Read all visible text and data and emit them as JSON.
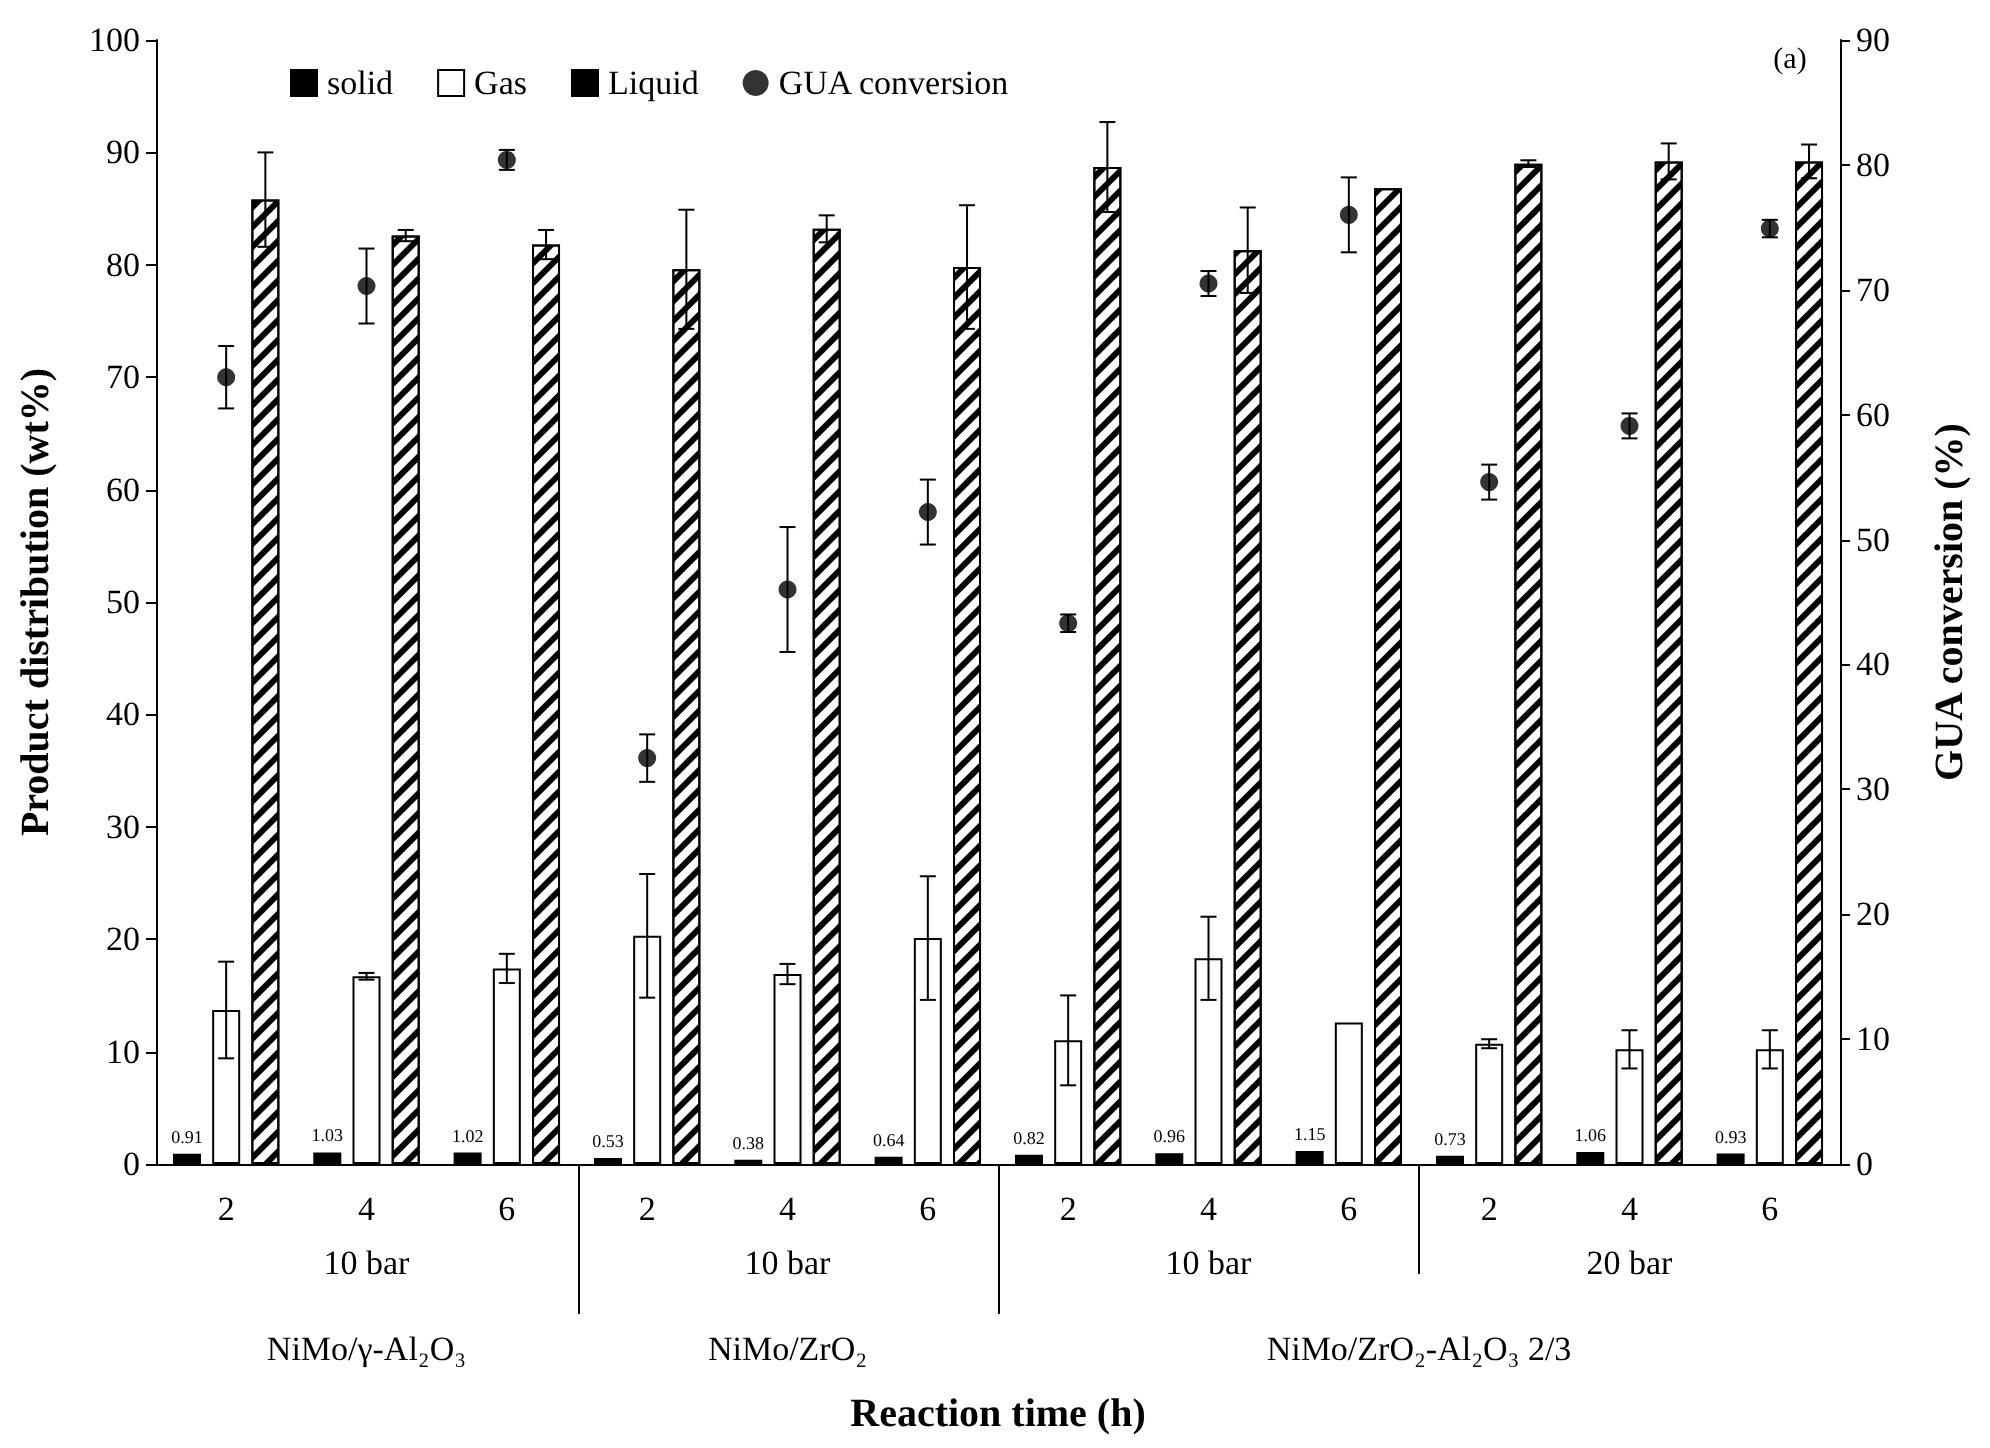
{
  "chart_data": {
    "type": "bar",
    "categories": [
      "2",
      "4",
      "6",
      "2",
      "4",
      "6",
      "2",
      "4",
      "6",
      "2",
      "4",
      "6"
    ],
    "xlabel": "Reaction time (h)",
    "ylabel": "Product distribution (wt%)",
    "y2label": "GUA conversion (%)",
    "ylim": [
      0,
      100
    ],
    "yticks": [
      0,
      10,
      20,
      30,
      40,
      50,
      60,
      70,
      80,
      90,
      100
    ],
    "y2lim": [
      0,
      90
    ],
    "y2ticks": [
      0,
      10,
      20,
      30,
      40,
      50,
      60,
      70,
      80,
      90
    ],
    "legend": "top left",
    "grid": false,
    "annotations": [
      "10 bar",
      "10 bar",
      "10 bar",
      "20 bar",
      "NiMo/γ-Al₂O₃",
      "NiMo/ZrO₂",
      "NiMo/ZrO₂-Al₂O₃ 2/3",
      "(a)"
    ],
    "series": [
      {
        "name": "solid",
        "color": "#000000",
        "values": [
          0.91,
          1.03,
          1.02,
          0.53,
          0.38,
          0.64,
          0.82,
          0.96,
          1.15,
          0.73,
          1.06,
          0.93
        ],
        "value_labels": [
          "0.91",
          "1.03",
          "1.02",
          "0.53",
          "0.38",
          "0.64",
          "0.82",
          "0.96",
          "1.15",
          "0.73",
          "1.06",
          "0.93"
        ]
      },
      {
        "name": "Gas",
        "color": "#ffffff",
        "values": [
          13.7,
          16.7,
          17.4,
          20.3,
          16.9,
          20.1,
          11.0,
          18.3,
          12.6,
          10.7,
          10.2,
          10.2
        ],
        "errors": [
          4.3,
          0.3,
          1.3,
          5.5,
          0.9,
          5.5,
          4.0,
          3.7,
          null,
          0.4,
          1.7,
          1.7
        ]
      },
      {
        "name": "Liquid",
        "color": "#000000",
        "values": [
          85.8,
          82.6,
          81.8,
          79.6,
          83.2,
          79.8,
          88.7,
          81.3,
          86.8,
          89.0,
          89.2,
          89.2
        ],
        "errors": [
          4.2,
          0.5,
          1.3,
          5.3,
          1.2,
          5.5,
          4.0,
          3.8,
          null,
          0.3,
          1.6,
          1.5
        ]
      },
      {
        "name": "GUA conversion",
        "type": "scatter",
        "axis": "y2",
        "marker": "circle",
        "color": "#000000",
        "values": [
          63.0,
          70.3,
          80.4,
          32.5,
          46.0,
          52.2,
          43.3,
          70.5,
          76.0,
          54.6,
          59.1,
          74.9
        ],
        "errors": [
          2.5,
          3.0,
          0.8,
          1.9,
          5.0,
          2.6,
          0.7,
          1.0,
          3.0,
          1.4,
          1.0,
          0.7
        ]
      }
    ]
  }
}
